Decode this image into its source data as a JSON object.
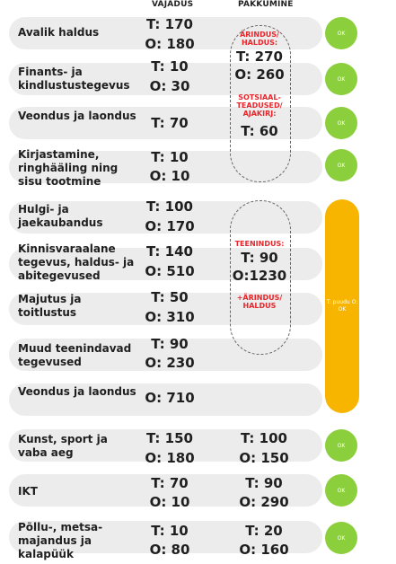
{
  "header": {
    "need": "VAJADUS",
    "supply": "PAKKUMINE"
  },
  "rows": [
    {
      "label": "Avalik haldus",
      "t": "T: 170",
      "o": "O: 180"
    },
    {
      "label": "Finants- ja kindlustustegevus",
      "t": "T: 10",
      "o": "O: 30"
    },
    {
      "label": "Veondus ja laondus",
      "t": "T: 70",
      "o": ""
    },
    {
      "label": "Kirjastamine, ringhääling ning sisu tootmine",
      "t": "T: 10",
      "o": "O: 10"
    },
    {
      "label": "Hulgi- ja jaekaubandus",
      "t": "T: 100",
      "o": "O: 170"
    },
    {
      "label": "Kinnisvaraalane tegevus, haldus- ja abitegevused",
      "t": "T: 140",
      "o": "O: 510"
    },
    {
      "label": "Majutus ja toitlustus",
      "t": "T: 50",
      "o": "O: 310"
    },
    {
      "label": "Muud teenindavad tegevused",
      "t": "T: 90",
      "o": "O: 230"
    },
    {
      "label": "Veondus ja laondus",
      "t": "",
      "o": "O: 710"
    },
    {
      "label": "Kunst, sport ja vaba aeg",
      "t": "T: 150",
      "o": "O: 180",
      "st": "T: 100",
      "so": "O: 150"
    },
    {
      "label": "IKT",
      "t": "T: 70",
      "o": "O: 10",
      "st": "T: 90",
      "so": "O: 290"
    },
    {
      "label": "Põllu-, metsa-majandus ja kalapüük",
      "t": "T: 10",
      "o": "O: 80",
      "st": "T: 20",
      "so": "O: 160"
    }
  ],
  "group1": {
    "label1": "ÄRINDUS/ HALDUS:",
    "t": "T: 270",
    "o": "O: 260",
    "label2": "SOTSIAAL-TEADUSED/ AJAKIRJ:",
    "t2": "T: 60"
  },
  "group2": {
    "label1": "TEENINDUS:",
    "t": "T: 90",
    "o": "O:1230",
    "label2": "+ÄRINDUS/ HALDUS"
  },
  "status": {
    "ok": "OK",
    "yellow": "T: puudu O: OK",
    "colors": {
      "ok": "#8ccf3c",
      "warn": "#f7b500",
      "accent": "#e8262b",
      "row": "#ececec"
    }
  }
}
